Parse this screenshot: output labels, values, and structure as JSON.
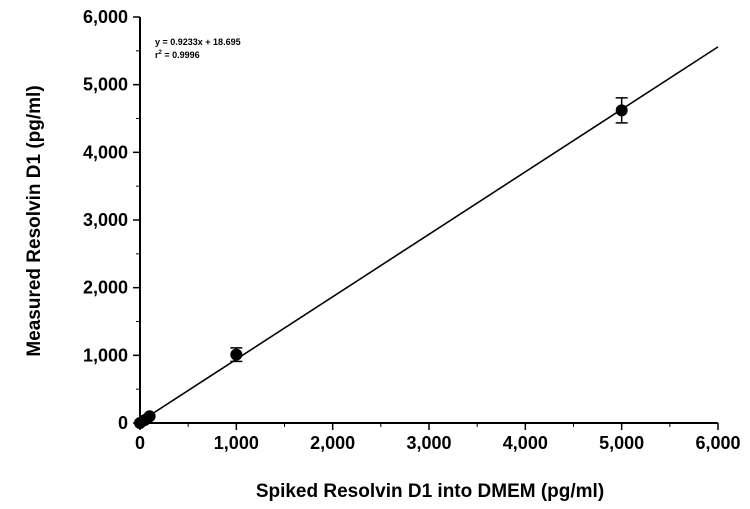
{
  "chart_data": {
    "type": "scatter",
    "title": "",
    "xlabel": "Spiked Resolvin D1 into DMEM (pg/ml)",
    "ylabel": "Measured Resolvin D1  (pg/ml)",
    "xlim": [
      0,
      6000
    ],
    "ylim": [
      0,
      6000
    ],
    "x_ticks": [
      0,
      1000,
      2000,
      3000,
      4000,
      5000,
      6000
    ],
    "y_ticks": [
      0,
      1000,
      2000,
      3000,
      4000,
      5000,
      6000
    ],
    "x_tick_labels": [
      "0",
      "1,000",
      "2,000",
      "3,000",
      "4,000",
      "5,000",
      "6,000"
    ],
    "y_tick_labels": [
      "0",
      "1,000",
      "2,000",
      "3,000",
      "4,000",
      "5,000",
      "6,000"
    ],
    "y_minor_ticks": [
      500,
      1500,
      2500,
      3500,
      4500,
      5500
    ],
    "grid": false,
    "legend": "none",
    "points": [
      {
        "x": 0,
        "y": 0,
        "err": 0
      },
      {
        "x": 50,
        "y": 45,
        "err": 0
      },
      {
        "x": 100,
        "y": 100,
        "err": 0
      },
      {
        "x": 1000,
        "y": 1010,
        "err": 100
      },
      {
        "x": 5000,
        "y": 4620,
        "err": 185
      }
    ],
    "fit": {
      "slope": 0.9233,
      "intercept": 18.695,
      "x_range": [
        0,
        6000
      ]
    },
    "annotation": {
      "equation": "y = 0.9233x + 18.695",
      "r2_prefix": "r",
      "r2_exponent": "2",
      "r2_value": " = 0.9996"
    },
    "colors": {
      "marker": "#000000",
      "line": "#000000",
      "axis": "#000000",
      "background": "#ffffff"
    }
  }
}
